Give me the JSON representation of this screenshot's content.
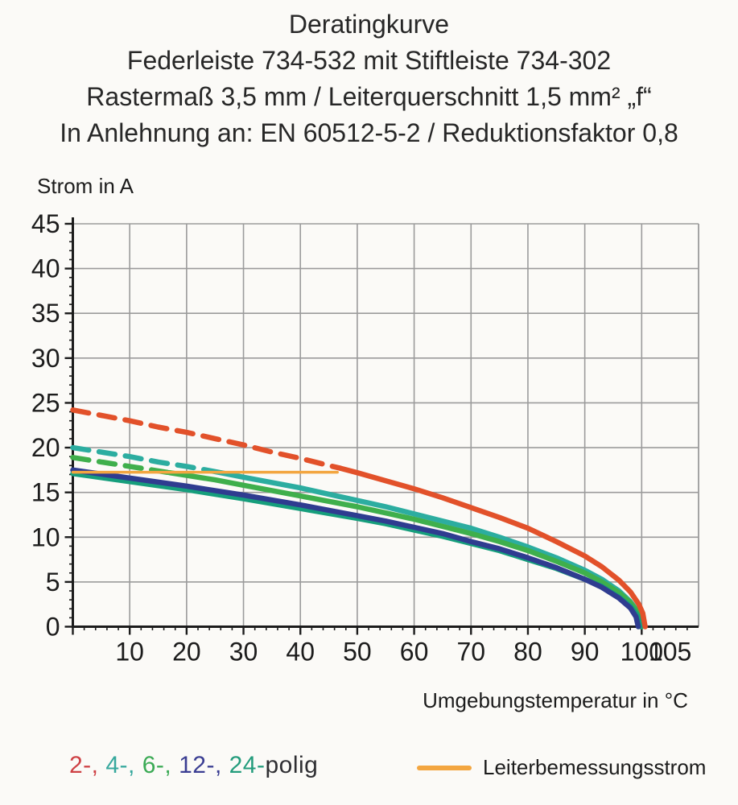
{
  "header": {
    "line1": "Deratingkurve",
    "line2": "Federleiste 734-532 mit Stiftleiste 734-302",
    "line3": "Rastermaß 3,5 mm / Leiterquerschnitt 1,5 mm² „f“",
    "line4": "In Anlehnung an: EN 60512-5-2 / Reduktionsfaktor 0,8"
  },
  "chart_data": {
    "type": "line",
    "title": "Deratingkurve",
    "xlabel": "Umgebungstemperatur in °C",
    "ylabel": "Strom in A",
    "xlim": [
      0,
      110
    ],
    "ylim": [
      0,
      45
    ],
    "x_tick_labels": [
      10,
      20,
      30,
      40,
      50,
      60,
      70,
      80,
      90,
      100,
      105
    ],
    "x_grid_step": 10,
    "x_minor_step": 2,
    "y_major_step": 5,
    "y_minor_step": 1,
    "grid_color": "#9b9b9b",
    "axis_color": "#1c1c1c",
    "legend_position": "bottom",
    "series": [
      {
        "name": "4-polig",
        "color": "#2cada0",
        "width": 6.5,
        "dash_until": 26,
        "points": [
          [
            0,
            20
          ],
          [
            5,
            19.5
          ],
          [
            10,
            19
          ],
          [
            15,
            18.4
          ],
          [
            20,
            17.9
          ],
          [
            26,
            17.2
          ],
          [
            30,
            16.7
          ],
          [
            35,
            16.1
          ],
          [
            40,
            15.5
          ],
          [
            45,
            14.8
          ],
          [
            50,
            14.1
          ],
          [
            55,
            13.4
          ],
          [
            60,
            12.6
          ],
          [
            65,
            11.8
          ],
          [
            70,
            11
          ],
          [
            75,
            10
          ],
          [
            80,
            8.9
          ],
          [
            85,
            7.7
          ],
          [
            90,
            6.3
          ],
          [
            93,
            5.3
          ],
          [
            96,
            4
          ],
          [
            98,
            2.8
          ],
          [
            99.3,
            1.7
          ],
          [
            100,
            0
          ]
        ]
      },
      {
        "name": "6-polig",
        "color": "#3faf4c",
        "width": 6.5,
        "dash_until": 17,
        "points": [
          [
            0,
            18.9
          ],
          [
            5,
            18.4
          ],
          [
            10,
            17.9
          ],
          [
            17,
            17.2
          ],
          [
            20,
            16.9
          ],
          [
            25,
            16.4
          ],
          [
            30,
            15.8
          ],
          [
            35,
            15.2
          ],
          [
            40,
            14.6
          ],
          [
            45,
            14
          ],
          [
            50,
            13.4
          ],
          [
            55,
            12.7
          ],
          [
            60,
            12
          ],
          [
            65,
            11.2
          ],
          [
            70,
            10.4
          ],
          [
            75,
            9.5
          ],
          [
            80,
            8.5
          ],
          [
            85,
            7.3
          ],
          [
            90,
            6
          ],
          [
            93,
            5
          ],
          [
            96,
            3.8
          ],
          [
            98,
            2.7
          ],
          [
            99.3,
            1.6
          ],
          [
            100,
            0
          ]
        ]
      },
      {
        "name": "24-polig",
        "color": "#169e7c",
        "width": 6.5,
        "points": [
          [
            0,
            17.1
          ],
          [
            10,
            16.2
          ],
          [
            20,
            15.3
          ],
          [
            30,
            14.3
          ],
          [
            40,
            13.2
          ],
          [
            50,
            12.1
          ],
          [
            55,
            11.5
          ],
          [
            60,
            10.8
          ],
          [
            65,
            10.1
          ],
          [
            70,
            9.3
          ],
          [
            75,
            8.5
          ],
          [
            80,
            7.5
          ],
          [
            85,
            6.5
          ],
          [
            90,
            5.3
          ],
          [
            93,
            4.5
          ],
          [
            96,
            3.3
          ],
          [
            98,
            2.3
          ],
          [
            99.2,
            1.3
          ],
          [
            99.8,
            0
          ]
        ]
      },
      {
        "name": "12-polig",
        "color": "#2f3c90",
        "width": 6.5,
        "points": [
          [
            0,
            17.5
          ],
          [
            10,
            16.6
          ],
          [
            20,
            15.7
          ],
          [
            30,
            14.7
          ],
          [
            40,
            13.6
          ],
          [
            50,
            12.4
          ],
          [
            55,
            11.8
          ],
          [
            60,
            11.1
          ],
          [
            65,
            10.4
          ],
          [
            70,
            9.5
          ],
          [
            75,
            8.7
          ],
          [
            80,
            7.7
          ],
          [
            85,
            6.6
          ],
          [
            90,
            5.3
          ],
          [
            93,
            4.4
          ],
          [
            96,
            3.2
          ],
          [
            98,
            2.1
          ],
          [
            99,
            1.1
          ],
          [
            99.4,
            0
          ]
        ]
      },
      {
        "name": "Leiterbemessungsstrom",
        "color": "#f3a640",
        "width": 3.5,
        "points": [
          [
            0,
            17.25
          ],
          [
            46.5,
            17.25
          ]
        ]
      },
      {
        "name": "2-polig",
        "color": "#e2512a",
        "width": 6.5,
        "dash_until": 47,
        "points": [
          [
            0,
            24.2
          ],
          [
            5,
            23.6
          ],
          [
            10,
            23
          ],
          [
            15,
            22.3
          ],
          [
            20,
            21.7
          ],
          [
            25,
            21
          ],
          [
            30,
            20.3
          ],
          [
            35,
            19.5
          ],
          [
            40,
            18.8
          ],
          [
            45,
            18
          ],
          [
            47,
            17.7
          ],
          [
            50,
            17.2
          ],
          [
            55,
            16.3
          ],
          [
            60,
            15.4
          ],
          [
            65,
            14.4
          ],
          [
            70,
            13.3
          ],
          [
            75,
            12.2
          ],
          [
            80,
            11
          ],
          [
            85,
            9.5
          ],
          [
            90,
            7.9
          ],
          [
            93,
            6.7
          ],
          [
            96,
            5.2
          ],
          [
            98,
            3.9
          ],
          [
            99.5,
            2.5
          ],
          [
            100.2,
            1.5
          ],
          [
            100.6,
            0
          ]
        ]
      }
    ]
  },
  "legend": {
    "pole_items": [
      {
        "label": "2-",
        "color": "#ce4044"
      },
      {
        "label": "4-",
        "color": "#36a89d"
      },
      {
        "label": "6-",
        "color": "#3baa55"
      },
      {
        "label": "12-",
        "color": "#3a3d92"
      },
      {
        "label": "24-",
        "color": "#239c7c"
      }
    ],
    "separator": ", ",
    "suffix": "polig",
    "suffix_color": "#2f2f33",
    "rated": {
      "label": "Leiterbemessungsstrom",
      "color": "#f3a640"
    }
  }
}
